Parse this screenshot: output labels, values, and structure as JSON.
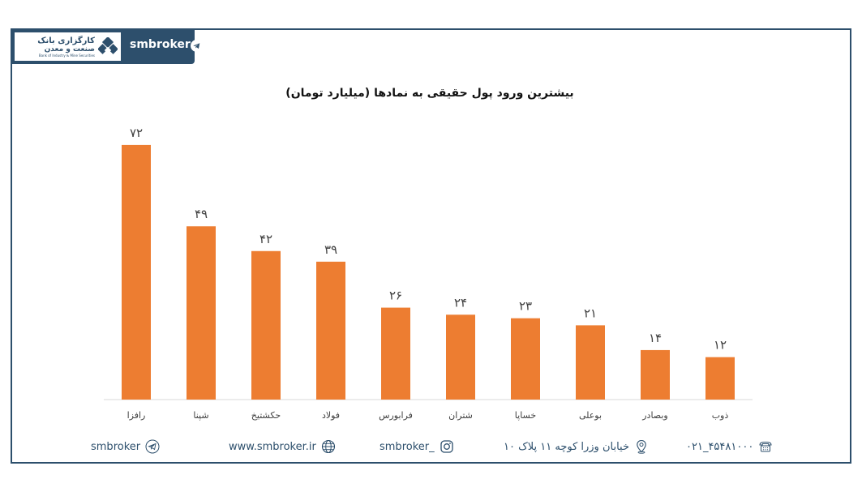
{
  "header": {
    "brand": "smbroker",
    "logo_line1": "کارگزاری بانک",
    "logo_line2": "صنعت و معدن",
    "logo_line3": "Bank of Industry & Mine Securities"
  },
  "chart_data": {
    "type": "bar",
    "title": "بیشترین ورود پول حقیقی به نمادها (میلیارد تومان)",
    "categories": [
      "رافزا",
      "شپنا",
      "حکشتیخ",
      "فولاد",
      "فرابورس",
      "شتران",
      "خساپا",
      "بوعلی",
      "وبصادر",
      "ذوب"
    ],
    "values": [
      72,
      49,
      42,
      39,
      26,
      24,
      23,
      21,
      14,
      12
    ],
    "value_labels": [
      "۷۲",
      "۴۹",
      "۴۲",
      "۳۹",
      "۲۶",
      "۲۴",
      "۲۳",
      "۲۱",
      "۱۴",
      "۱۲"
    ],
    "ylim": [
      0,
      80
    ],
    "bar_color": "#ed7d31",
    "grid": false
  },
  "footer": {
    "telegram": "smbroker",
    "website": "www.smbroker.ir",
    "instagram": "smbroker_",
    "address": "خیابان وزرا کوچه ۱۱ پلاک ۱۰",
    "phone": "۰۲۱_۴۵۴۸۱۰۰۰"
  },
  "colors": {
    "primary": "#2d4f6c",
    "bar": "#ed7d31"
  }
}
